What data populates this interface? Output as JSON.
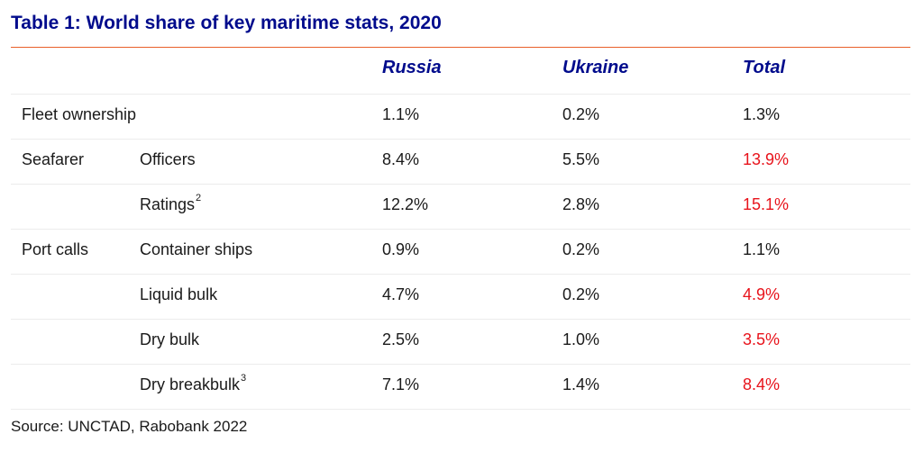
{
  "title": "Table 1: World share of key maritime stats, 2020",
  "columns": {
    "russia": "Russia",
    "ukraine": "Ukraine",
    "total": "Total"
  },
  "highlight_color": "#e8131b",
  "rows": [
    {
      "category": "Fleet ownership",
      "sub": "",
      "sup": "",
      "russia": "1.1%",
      "ukraine": "0.2%",
      "total": "1.3%",
      "highlight": false
    },
    {
      "category": "Seafarer",
      "sub": "Officers",
      "sup": "",
      "russia": "8.4%",
      "ukraine": "5.5%",
      "total": "13.9%",
      "highlight": true
    },
    {
      "category": "",
      "sub": "Ratings",
      "sup": "2",
      "russia": "12.2%",
      "ukraine": "2.8%",
      "total": "15.1%",
      "highlight": true
    },
    {
      "category": "Port calls",
      "sub": "Container ships",
      "sup": "",
      "russia": "0.9%",
      "ukraine": "0.2%",
      "total": "1.1%",
      "highlight": false
    },
    {
      "category": "",
      "sub": "Liquid bulk",
      "sup": "",
      "russia": "4.7%",
      "ukraine": "0.2%",
      "total": "4.9%",
      "highlight": true
    },
    {
      "category": "",
      "sub": "Dry bulk",
      "sup": "",
      "russia": "2.5%",
      "ukraine": "1.0%",
      "total": "3.5%",
      "highlight": true
    },
    {
      "category": "",
      "sub": "Dry breakbulk",
      "sup": "3",
      "russia": "7.1%",
      "ukraine": "1.4%",
      "total": "8.4%",
      "highlight": true
    }
  ],
  "source": "Source: UNCTAD, Rabobank 2022"
}
